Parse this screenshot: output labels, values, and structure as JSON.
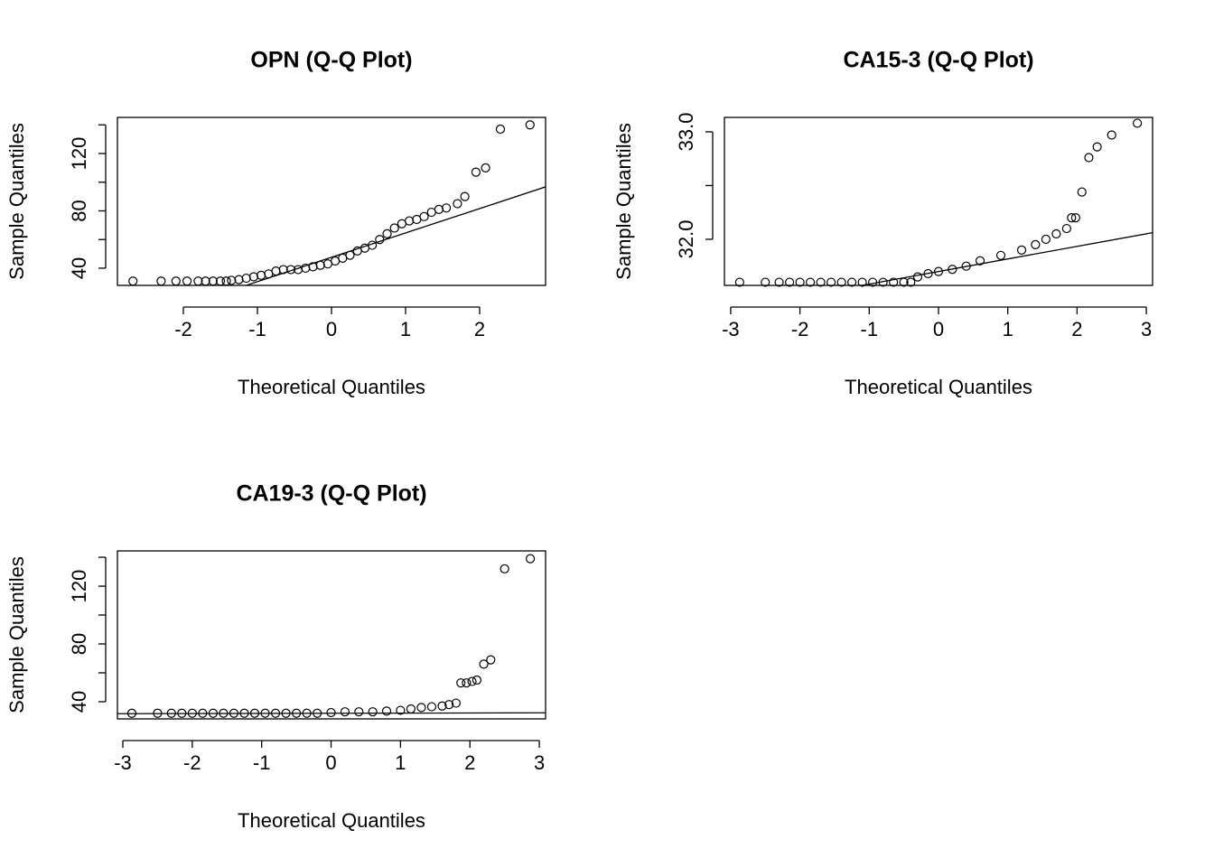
{
  "chart_data": [
    {
      "type": "scatter",
      "title": "OPN (Q-Q Plot)",
      "xlabel": "Theoretical Quantiles",
      "ylabel": "Sample Quantiles",
      "xlim": [
        -2.89,
        2.89
      ],
      "ylim": [
        28,
        145.2
      ],
      "xticks": [
        -2,
        -1,
        0,
        1,
        2
      ],
      "yticks": [
        40,
        {
          "value": 60,
          "label": null
        },
        80,
        {
          "value": 100,
          "label": null
        },
        120,
        {
          "value": 140,
          "label": null
        }
      ],
      "qqline": {
        "intercept": 47.6,
        "slope": 17
      },
      "x": [
        -2.68,
        -2.3,
        -2.1,
        -1.95,
        -1.8,
        -1.7,
        -1.6,
        -1.5,
        -1.42,
        -1.35,
        -1.25,
        -1.15,
        -1.05,
        -0.95,
        -0.85,
        -0.75,
        -0.65,
        -0.55,
        -0.45,
        -0.35,
        -0.25,
        -0.15,
        -0.05,
        0.05,
        0.15,
        0.25,
        0.35,
        0.45,
        0.55,
        0.65,
        0.75,
        0.85,
        0.95,
        1.05,
        1.15,
        1.25,
        1.35,
        1.45,
        1.55,
        1.7,
        1.8,
        1.95,
        2.08,
        2.28,
        2.68
      ],
      "y": [
        31,
        31,
        31,
        31,
        31,
        31,
        31,
        31,
        31,
        31.5,
        32,
        33,
        34,
        35,
        36,
        38,
        39,
        39,
        39,
        40,
        41,
        42,
        43,
        45,
        47,
        49,
        52,
        54,
        56,
        60,
        64,
        68,
        71,
        73,
        74,
        76,
        79,
        81,
        82,
        85,
        90,
        107,
        110,
        137,
        140
      ]
    },
    {
      "type": "scatter",
      "title": "CA15-3 (Q-Q Plot)",
      "xlabel": "Theoretical Quantiles",
      "ylabel": "Sample Quantiles",
      "xlim": [
        -3.09,
        3.09
      ],
      "ylim": [
        31.571,
        33.134
      ],
      "xticks": [
        -3,
        -2,
        -1,
        0,
        1,
        2,
        3
      ],
      "yticks": [
        {
          "value": 32,
          "label": "32.0"
        },
        {
          "value": 32.5,
          "label": null
        },
        {
          "value": 33,
          "label": "33.0"
        }
      ],
      "qqline": {
        "intercept": 31.7,
        "slope": 0.117
      },
      "x": [
        -2.87,
        -2.5,
        -2.3,
        -2.15,
        -2.0,
        -1.85,
        -1.7,
        -1.55,
        -1.4,
        -1.25,
        -1.1,
        -0.95,
        -0.8,
        -0.65,
        -0.5,
        -0.4,
        -0.3,
        -0.15,
        0,
        0.2,
        0.4,
        0.6,
        0.9,
        1.2,
        1.4,
        1.55,
        1.7,
        1.85,
        1.92,
        1.98,
        2.07,
        2.17,
        2.29,
        2.5,
        2.87
      ],
      "y": [
        31.6,
        31.6,
        31.6,
        31.6,
        31.6,
        31.6,
        31.6,
        31.6,
        31.6,
        31.6,
        31.6,
        31.6,
        31.6,
        31.6,
        31.6,
        31.6,
        31.65,
        31.68,
        31.7,
        31.72,
        31.75,
        31.8,
        31.85,
        31.9,
        31.95,
        32,
        32.05,
        32.1,
        32.2,
        32.2,
        32.44,
        32.76,
        32.86,
        32.97,
        33.08
      ]
    },
    {
      "type": "scatter",
      "title": "CA19-3 (Q-Q Plot)",
      "xlabel": "Theoretical Quantiles",
      "ylabel": "Sample Quantiles",
      "xlim": [
        -3.078,
        3.09
      ],
      "ylim": [
        28.1,
        144.4
      ],
      "xticks": [
        -3,
        -2,
        -1,
        0,
        1,
        2,
        3
      ],
      "yticks": [
        40,
        {
          "value": 60,
          "label": null
        },
        80,
        {
          "value": 100,
          "label": null
        },
        120,
        {
          "value": 140,
          "label": null
        }
      ],
      "qqline": {
        "intercept": 32,
        "slope": 0.1
      },
      "x": [
        -2.87,
        -2.5,
        -2.3,
        -2.15,
        -2.0,
        -1.85,
        -1.7,
        -1.55,
        -1.4,
        -1.25,
        -1.1,
        -0.95,
        -0.8,
        -0.65,
        -0.5,
        -0.35,
        -0.2,
        0,
        0.2,
        0.4,
        0.6,
        0.8,
        1.0,
        1.15,
        1.3,
        1.45,
        1.6,
        1.7,
        1.8,
        1.87,
        1.95,
        2.03,
        2.1,
        2.2,
        2.3,
        2.5,
        2.87
      ],
      "y": [
        32,
        32,
        32,
        32,
        32,
        32,
        32,
        32,
        32,
        32,
        32,
        32,
        32,
        32,
        32,
        32,
        32,
        32.5,
        33,
        33,
        33,
        33.5,
        34,
        35,
        36,
        36.5,
        37,
        38,
        39,
        53,
        53,
        54,
        55,
        66,
        69,
        132,
        139
      ]
    }
  ]
}
